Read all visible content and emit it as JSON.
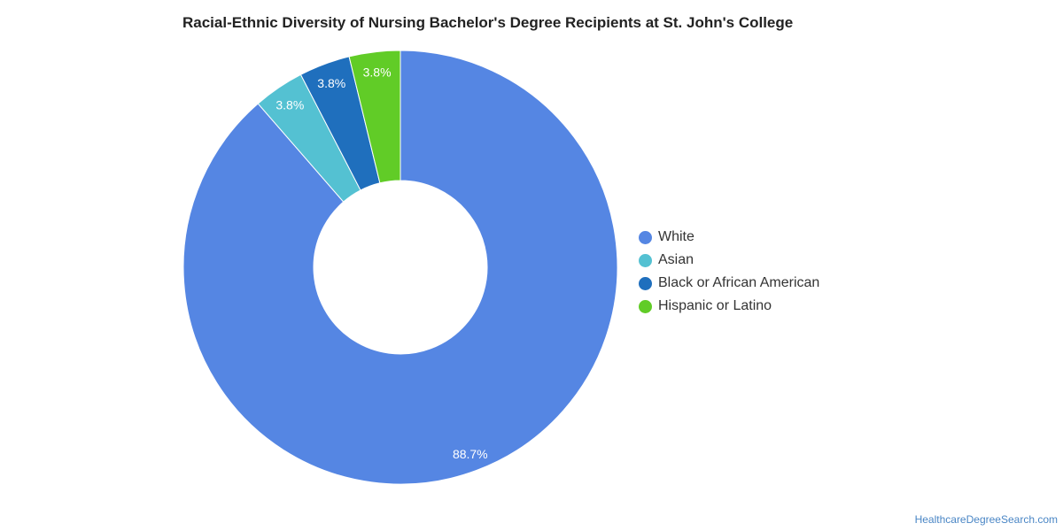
{
  "title": "Racial-Ethnic Diversity of Nursing Bachelor's Degree Recipients at St. John's College",
  "credit": "HealthcareDegreeSearch.com",
  "chart_data": {
    "type": "pie",
    "variant": "donut",
    "title": "Racial-Ethnic Diversity of Nursing Bachelor's Degree Recipients at St. John's College",
    "legend_position": "right",
    "slices": [
      {
        "name": "White",
        "value": 88.7,
        "label": "88.7%",
        "color": "#5586e3"
      },
      {
        "name": "Asian",
        "value": 3.8,
        "label": "3.8%",
        "color": "#54c1d2"
      },
      {
        "name": "Black or African American",
        "value": 3.8,
        "label": "3.8%",
        "color": "#1f6fbd"
      },
      {
        "name": "Hispanic or Latino",
        "value": 3.8,
        "label": "3.8%",
        "color": "#61cc27"
      }
    ]
  }
}
